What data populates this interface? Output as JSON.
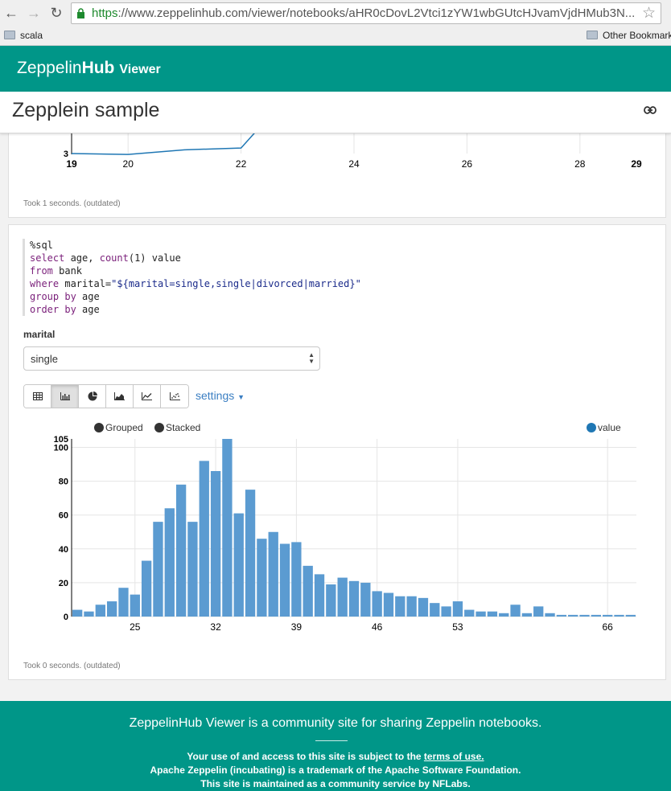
{
  "browser": {
    "url_scheme": "https",
    "url_rest": "://www.zeppelinhub.com/viewer/notebooks/aHR0cDovL2Vtci1zYW1wbGUtcHJvamVjdHMub3N...",
    "bookmark_left": "scala",
    "bookmark_right": "Other Bookmarks"
  },
  "header": {
    "brand_part1": "Zeppelin",
    "brand_part2": "Hub",
    "brand_part3": "Viewer"
  },
  "note": {
    "title": "Zepplein sample"
  },
  "paragraph1": {
    "took": "Took 1 seconds. (outdated)",
    "chart_data": {
      "type": "line",
      "x_ticks": [
        "19",
        "20",
        "22",
        "24",
        "26",
        "28",
        "29"
      ],
      "y_ticks": [
        "3"
      ],
      "x": [
        19,
        20,
        21,
        22,
        22.5
      ],
      "y": [
        3,
        2.95,
        3.2,
        3.3,
        5
      ]
    }
  },
  "paragraph2": {
    "code": {
      "line1": "%sql",
      "l2_kw1": "select",
      "l2_t1": " age, ",
      "l2_kw2": "count",
      "l2_t2": "(1) value",
      "l3_kw": "from",
      "l3_t": " bank",
      "l4_kw": "where",
      "l4_t": " marital=",
      "l4_str": "\"${marital=single,single|divorced|married}\"",
      "l5_kw": "group by",
      "l5_t": " age",
      "l6_kw": "order by",
      "l6_t": " age"
    },
    "form_label": "marital",
    "select_value": "single",
    "settings_label": "settings",
    "took": "Took 0 seconds. (outdated)",
    "chart_data": {
      "type": "bar",
      "legend": [
        "Grouped",
        "Stacked"
      ],
      "series": [
        {
          "name": "value",
          "color": "#1f77b4"
        }
      ],
      "x": [
        20,
        21,
        22,
        23,
        24,
        25,
        26,
        27,
        28,
        29,
        30,
        31,
        32,
        33,
        34,
        35,
        36,
        37,
        38,
        39,
        40,
        41,
        42,
        43,
        44,
        45,
        46,
        47,
        48,
        49,
        50,
        51,
        52,
        53,
        54,
        55,
        56,
        57,
        58,
        59,
        60,
        61,
        62,
        63,
        64,
        65,
        66,
        67,
        68
      ],
      "values": [
        4,
        3,
        7,
        9,
        17,
        13,
        33,
        56,
        64,
        78,
        56,
        92,
        86,
        105,
        61,
        75,
        46,
        50,
        43,
        44,
        30,
        25,
        19,
        23,
        21,
        20,
        15,
        14,
        12,
        12,
        11,
        8,
        6,
        9,
        4,
        3,
        3,
        2,
        7,
        2,
        6,
        2,
        1,
        1,
        1,
        1,
        1,
        1,
        1
      ],
      "x_ticks": [
        "25",
        "32",
        "39",
        "46",
        "53",
        "66"
      ],
      "y_ticks": [
        "0",
        "20",
        "40",
        "60",
        "80",
        "100",
        "105"
      ],
      "ylim": [
        0,
        105
      ]
    }
  },
  "footer": {
    "headline": "ZeppelinHub Viewer is a community site for sharing Zeppelin notebooks.",
    "line1_pre": "Your use of and access to this site is subject to the ",
    "line1_link": "terms of use.",
    "line2": "Apache Zeppelin (incubating) is a trademark of the Apache Software Foundation.",
    "line3": "This site is maintained as a community service by NFLabs."
  },
  "colors": {
    "brand": "#009688",
    "bar": "#5b9bd1",
    "link": "#3a7ec2"
  },
  "icons": [
    "back-arrow-icon",
    "forward-arrow-icon",
    "reload-icon",
    "lock-icon",
    "star-icon",
    "folder-icon",
    "link-icon",
    "table-icon",
    "bar-chart-icon",
    "pie-chart-icon",
    "area-chart-icon",
    "line-chart-icon",
    "scatter-chart-icon",
    "caret-down-icon"
  ]
}
